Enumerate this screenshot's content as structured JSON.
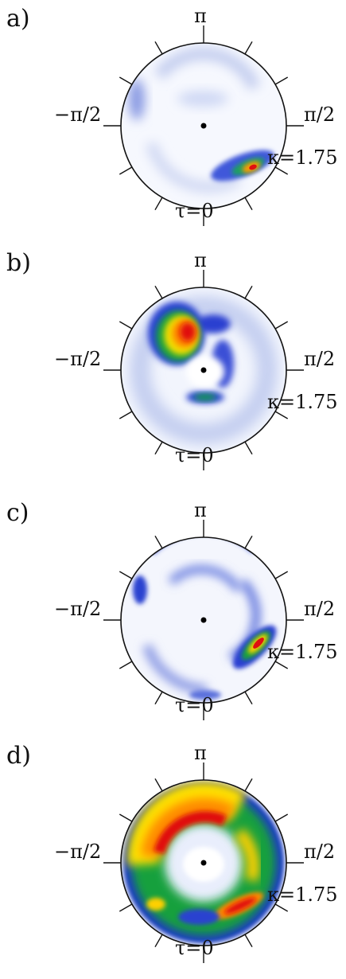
{
  "figure": {
    "panels": [
      {
        "label": "a)"
      },
      {
        "label": "b)"
      },
      {
        "label": "c)"
      },
      {
        "label": "d)"
      }
    ],
    "axis_labels": {
      "top": "π",
      "left": "−π/2",
      "right": "π/2",
      "bottom": "τ=0",
      "kappa": "κ=1.75"
    },
    "colormap": [
      "#ffffff",
      "#c9d3f3",
      "#2f44d6",
      "#0a8a2a",
      "#ffee00",
      "#ff8800",
      "#e01010"
    ]
  }
}
